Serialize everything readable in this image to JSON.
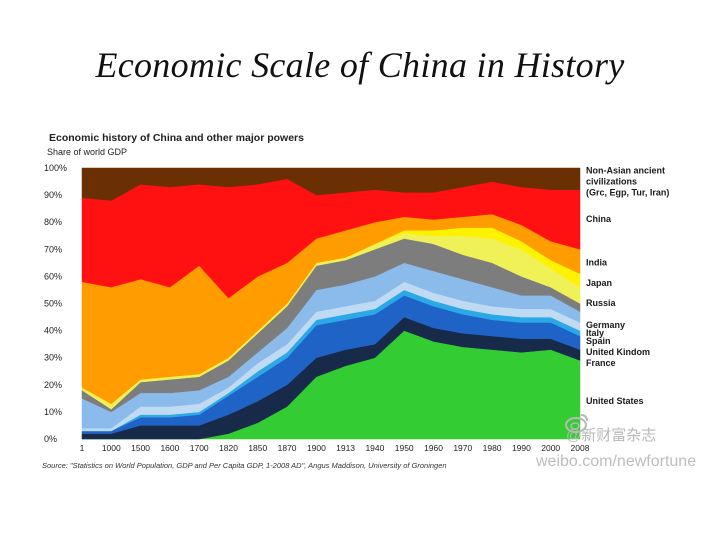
{
  "slide": {
    "title": "Economic Scale of China in History"
  },
  "watermarks": [
    "@新财富杂志",
    "weibo.com/newfortune"
  ],
  "chart_data": {
    "type": "area",
    "stacked": true,
    "title": "Economic history of China and other major powers",
    "subtitle": "Share of world GDP",
    "source": "Source: \"Statistics on World Population, GDP and Per Capita GDP, 1-2008 AD\", Angus Maddison, University of Groningen",
    "x": [
      1,
      1000,
      1500,
      1600,
      1700,
      1820,
      1850,
      1870,
      1900,
      1913,
      1940,
      1950,
      1960,
      1970,
      1980,
      1990,
      2000,
      2008
    ],
    "x_tick_labels": [
      "1",
      "1000",
      "1500",
      "1600",
      "1700",
      "1820",
      "1850",
      "1870",
      "1900",
      "1913",
      "1940",
      "1950",
      "1960",
      "1970",
      "1980",
      "1990",
      "2000",
      "2008"
    ],
    "ylim": [
      0,
      100
    ],
    "y_ticks": [
      0,
      10,
      20,
      30,
      40,
      50,
      60,
      70,
      80,
      90,
      100
    ],
    "y_tick_labels": [
      "0%",
      "10%",
      "20%",
      "30%",
      "40%",
      "50%",
      "60%",
      "70%",
      "80%",
      "90%",
      "100%"
    ],
    "legend_position": "right",
    "series": [
      {
        "name": "United States",
        "color": "#33cc33",
        "values": [
          0,
          0,
          0,
          0,
          0,
          2,
          6,
          12,
          23,
          27,
          30,
          40,
          36,
          34,
          33,
          32,
          33,
          29
        ]
      },
      {
        "name": "France",
        "color": "#172a4a",
        "values": [
          2,
          2,
          5,
          5,
          5,
          7,
          8,
          8,
          7,
          6,
          5,
          5,
          5,
          5,
          5,
          5,
          4,
          4
        ]
      },
      {
        "name": "United Kindom",
        "color": "#1f63c6",
        "values": [
          1,
          1,
          3,
          3,
          4,
          7,
          9,
          10,
          12,
          11,
          11,
          8,
          8,
          7,
          6,
          6,
          6,
          5
        ]
      },
      {
        "name": "Spain",
        "color": "#2aa8e8",
        "values": [
          0,
          0,
          1,
          1,
          1,
          1,
          2,
          2,
          2,
          2,
          2,
          2,
          2,
          2,
          2,
          2,
          2,
          2
        ]
      },
      {
        "name": "Italy",
        "color": "#c0daf3",
        "values": [
          1,
          1,
          3,
          3,
          3,
          2,
          3,
          3,
          3,
          3,
          3,
          3,
          3,
          3,
          3,
          3,
          3,
          3
        ]
      },
      {
        "name": "Germany",
        "color": "#8bbbeb",
        "values": [
          11,
          6,
          5,
          5,
          5,
          4,
          4,
          6,
          8,
          8,
          9,
          7,
          8,
          8,
          7,
          5,
          5,
          4
        ]
      },
      {
        "name": "Russia",
        "color": "#7d7d7d",
        "values": [
          3,
          1,
          4,
          5,
          5,
          6,
          7,
          8,
          9,
          9,
          10,
          9,
          10,
          9,
          9,
          7,
          3,
          3
        ]
      },
      {
        "name": "Japan",
        "color": "#f0f057",
        "values": [
          1,
          2,
          1,
          1,
          1,
          1,
          1,
          1,
          1,
          1,
          2,
          2,
          3,
          7,
          9,
          10,
          7,
          6
        ]
      },
      {
        "name": "India",
        "color": "#fff200",
        "values": [
          0,
          0,
          0,
          0,
          0,
          0,
          0,
          0,
          0,
          0,
          0,
          1,
          2,
          3,
          4,
          3,
          3,
          5
        ]
      },
      {
        "name": "China",
        "color": "#ff9c00",
        "values": [
          39,
          43,
          37,
          33,
          40,
          22,
          20,
          15,
          9,
          10,
          8,
          5,
          4,
          4,
          5,
          6,
          7,
          9
        ]
      },
      {
        "name": "Non-Asian ancient civilizations (Grc, Egp, Tur, Iran)",
        "color": "#ff1111",
        "values": [
          31,
          32,
          35,
          37,
          30,
          41,
          34,
          31,
          16,
          14,
          12,
          9,
          10,
          11,
          12,
          14,
          19,
          22
        ]
      },
      {
        "name": "",
        "color": "#6a3003",
        "values": [
          11,
          12,
          6,
          7,
          6,
          7,
          6,
          4,
          10,
          9,
          8,
          9,
          9,
          7,
          5,
          7,
          8,
          8
        ]
      }
    ],
    "legend_labels": [
      {
        "text": [
          "Non-Asian ancient",
          "civilizations",
          "(Grc, Egp, Tur, Iran)"
        ],
        "at_value": 98
      },
      {
        "text": [
          "China"
        ],
        "at_value": 80
      },
      {
        "text": [
          "India"
        ],
        "at_value": 64
      },
      {
        "text": [
          "Japan"
        ],
        "at_value": 56.5
      },
      {
        "text": [
          "Russia"
        ],
        "at_value": 49
      },
      {
        "text": [
          "Germany"
        ],
        "at_value": 41
      },
      {
        "text": [
          "Italy"
        ],
        "at_value": 38
      },
      {
        "text": [
          "Spain"
        ],
        "at_value": 35
      },
      {
        "text": [
          "United Kindom"
        ],
        "at_value": 31
      },
      {
        "text": [
          "France"
        ],
        "at_value": 27
      },
      {
        "text": [
          "United States"
        ],
        "at_value": 13
      }
    ]
  }
}
